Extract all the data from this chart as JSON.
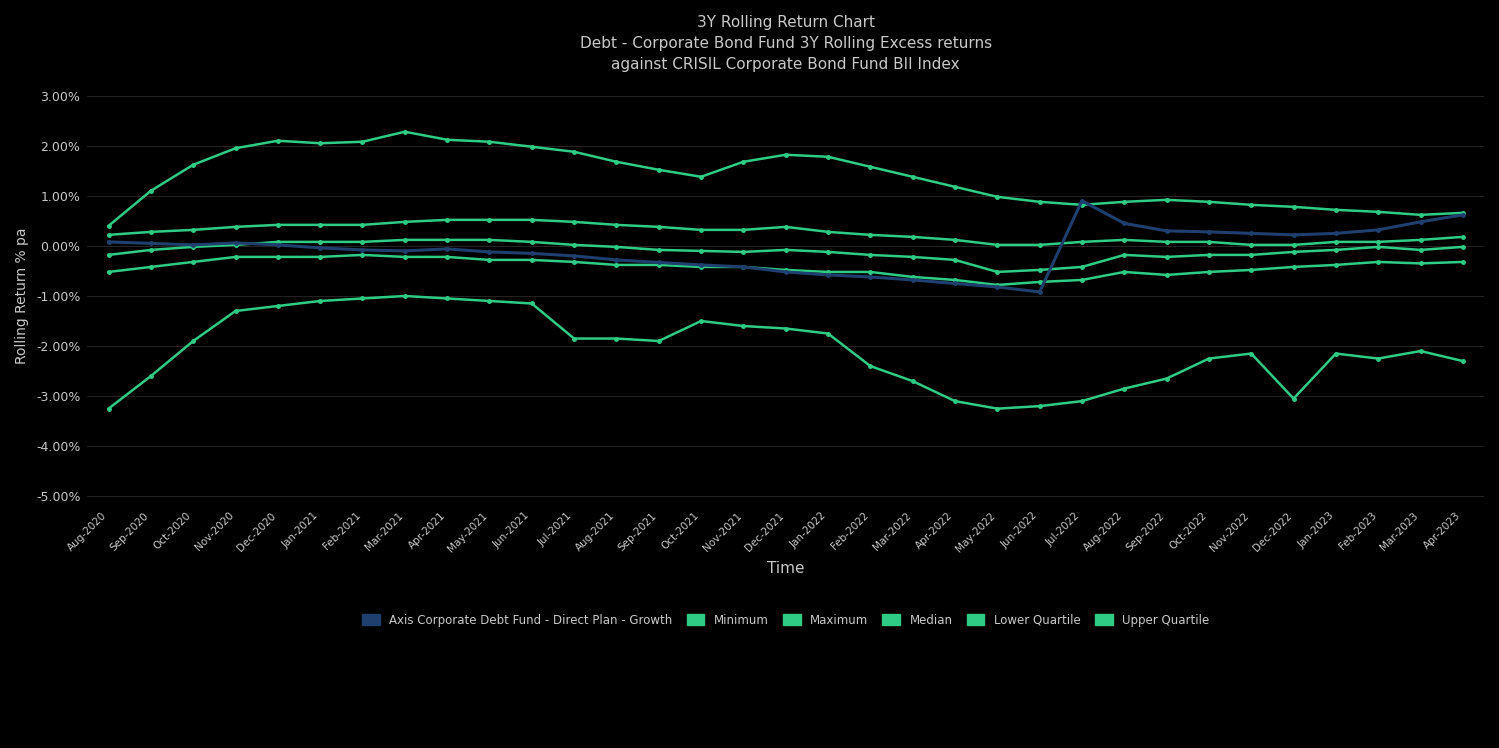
{
  "title_line1": "3Y Rolling Return Chart",
  "title_line2": "Debt - Corporate Bond Fund 3Y Rolling Excess returns",
  "title_line3": "against CRISIL Corporate Bond Fund BII Index",
  "xlabel": "Time",
  "ylabel": "Rolling Return % pa",
  "background_color": "#000000",
  "text_color": "#c8c8c8",
  "grid_color": "#2a2a2a",
  "fund_color": "#1f3f6e",
  "green_color": "#2ecc85",
  "ylim": [
    -5.2,
    3.2
  ],
  "x_labels": [
    "Aug-2020",
    "Sep-2020",
    "Oct-2020",
    "Nov-2020",
    "Dec-2020",
    "Jan-2021",
    "Feb-2021",
    "Mar-2021",
    "Apr-2021",
    "May-2021",
    "Jun-2021",
    "Jul-2021",
    "Aug-2021",
    "Sep-2021",
    "Oct-2021",
    "Nov-2021",
    "Dec-2021",
    "Jan-2022",
    "Feb-2022",
    "Mar-2022",
    "Apr-2022",
    "May-2022",
    "Jun-2022",
    "Jul-2022",
    "Aug-2022",
    "Sep-2022",
    "Oct-2022",
    "Nov-2022",
    "Dec-2022",
    "Jan-2023",
    "Feb-2023",
    "Mar-2023",
    "Apr-2023"
  ],
  "fund": [
    0.08,
    0.05,
    0.02,
    0.06,
    0.02,
    -0.04,
    -0.08,
    -0.1,
    -0.06,
    -0.12,
    -0.15,
    -0.2,
    -0.28,
    -0.33,
    -0.38,
    -0.42,
    -0.52,
    -0.58,
    -0.62,
    -0.68,
    -0.75,
    -0.82,
    -0.92,
    0.9,
    0.45,
    0.3,
    0.28,
    0.25,
    0.22,
    0.25,
    0.32,
    0.48,
    0.62
  ],
  "minimum": [
    -3.25,
    -2.6,
    -1.9,
    -1.3,
    -1.2,
    -1.1,
    -1.05,
    -1.0,
    -1.05,
    -1.1,
    -1.15,
    -1.85,
    -1.85,
    -1.9,
    -1.5,
    -1.6,
    -1.65,
    -1.75,
    -2.4,
    -2.7,
    -3.1,
    -3.25,
    -3.2,
    -3.1,
    -2.85,
    -2.65,
    -2.25,
    -2.15,
    -3.05,
    -2.15,
    -2.25,
    -2.1,
    -2.3
  ],
  "maximum": [
    0.4,
    1.1,
    1.62,
    1.95,
    2.1,
    2.05,
    2.08,
    2.28,
    2.12,
    2.08,
    1.98,
    1.88,
    1.68,
    1.52,
    1.38,
    1.68,
    1.82,
    1.78,
    1.58,
    1.38,
    1.18,
    0.98,
    0.88,
    0.82,
    0.88,
    0.92,
    0.88,
    0.82,
    0.78,
    0.72,
    0.68,
    0.62,
    0.66
  ],
  "median": [
    -0.18,
    -0.08,
    -0.02,
    0.02,
    0.08,
    0.08,
    0.08,
    0.12,
    0.12,
    0.12,
    0.08,
    0.02,
    -0.02,
    -0.08,
    -0.1,
    -0.12,
    -0.08,
    -0.12,
    -0.18,
    -0.22,
    -0.28,
    -0.52,
    -0.48,
    -0.42,
    -0.18,
    -0.22,
    -0.18,
    -0.18,
    -0.12,
    -0.08,
    -0.02,
    -0.08,
    -0.02
  ],
  "lower_quartile": [
    -0.52,
    -0.42,
    -0.32,
    -0.22,
    -0.22,
    -0.22,
    -0.18,
    -0.22,
    -0.22,
    -0.28,
    -0.28,
    -0.32,
    -0.38,
    -0.38,
    -0.42,
    -0.42,
    -0.48,
    -0.52,
    -0.52,
    -0.62,
    -0.68,
    -0.78,
    -0.72,
    -0.68,
    -0.52,
    -0.58,
    -0.52,
    -0.48,
    -0.42,
    -0.38,
    -0.32,
    -0.35,
    -0.32
  ],
  "upper_quartile": [
    0.22,
    0.28,
    0.32,
    0.38,
    0.42,
    0.42,
    0.42,
    0.48,
    0.52,
    0.52,
    0.52,
    0.48,
    0.42,
    0.38,
    0.32,
    0.32,
    0.38,
    0.28,
    0.22,
    0.18,
    0.12,
    0.02,
    0.02,
    0.08,
    0.12,
    0.08,
    0.08,
    0.02,
    0.02,
    0.08,
    0.08,
    0.12,
    0.18
  ],
  "yticks": [
    -5.0,
    -4.0,
    -3.0,
    -2.0,
    -1.0,
    0.0,
    1.0,
    2.0,
    3.0
  ],
  "legend_labels": [
    "Axis Corporate Debt Fund - Direct Plan - Growth",
    "Minimum",
    "Maximum",
    "Median",
    "Lower Quartile",
    "Upper Quartile"
  ],
  "fund_legend_color": "#1f3f6e",
  "green_legend_color": "#2ecc85"
}
